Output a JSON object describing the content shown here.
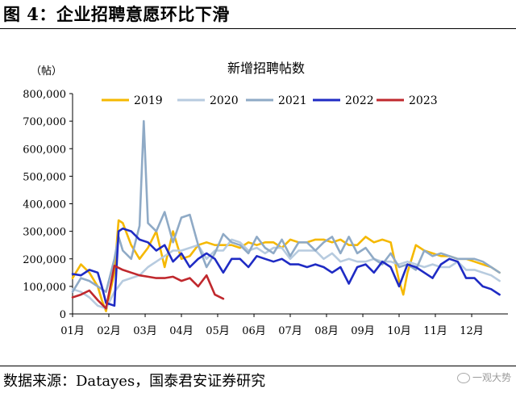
{
  "figure": {
    "title": "图 4：企业招聘意愿环比下滑",
    "source": "数据来源：Datayes，国泰君安证券研究",
    "watermark": "一观大势"
  },
  "chart_data": {
    "type": "line",
    "title": "新增招聘帖数",
    "unit_label": "（帖）",
    "ylim": [
      0,
      800000
    ],
    "ytick_values": [
      0,
      100000,
      200000,
      300000,
      400000,
      500000,
      600000,
      700000,
      800000
    ],
    "ytick_labels": [
      "0",
      "100,000",
      "200,000",
      "300,000",
      "400,000",
      "500,000",
      "600,000",
      "700,000",
      "800,000"
    ],
    "xlim": [
      0,
      52
    ],
    "xtick_positions": [
      0,
      4.33,
      8.67,
      13,
      17.33,
      21.67,
      26,
      30.33,
      34.67,
      39,
      43.33,
      47.67
    ],
    "xtick_labels": [
      "01月",
      "02月",
      "03月",
      "04月",
      "05月",
      "06月",
      "07月",
      "08月",
      "09月",
      "10月",
      "11月",
      "12月"
    ],
    "legend": "top",
    "series": [
      {
        "name": "2019",
        "color": "#F5B800",
        "x": [
          0,
          1,
          2,
          3,
          3.5,
          4,
          5,
          5.5,
          6,
          7,
          8,
          9,
          10,
          11,
          12,
          13,
          14,
          15,
          16,
          17,
          18,
          19,
          20,
          21,
          22,
          23,
          24,
          25,
          26,
          27,
          28,
          29,
          30,
          31,
          32,
          33,
          34,
          35,
          36,
          37,
          38,
          39,
          39.5,
          40,
          41,
          42,
          43,
          44,
          45,
          46,
          47,
          48,
          49,
          50,
          51
        ],
        "y": [
          130000,
          180000,
          150000,
          100000,
          50000,
          10000,
          150000,
          340000,
          330000,
          250000,
          200000,
          240000,
          300000,
          170000,
          300000,
          200000,
          210000,
          250000,
          260000,
          250000,
          250000,
          250000,
          240000,
          260000,
          250000,
          260000,
          260000,
          240000,
          270000,
          260000,
          260000,
          270000,
          270000,
          260000,
          270000,
          250000,
          250000,
          280000,
          260000,
          270000,
          260000,
          120000,
          70000,
          150000,
          250000,
          230000,
          220000,
          210000,
          210000,
          200000,
          200000,
          190000,
          180000,
          170000,
          150000
        ]
      },
      {
        "name": "2020",
        "color": "#B7CBDF",
        "x": [
          0,
          1,
          2,
          3,
          4,
          5,
          6,
          7,
          8,
          9,
          10,
          11,
          12,
          13,
          14,
          15,
          16,
          17,
          18,
          19,
          20,
          21,
          22,
          23,
          24,
          25,
          26,
          27,
          28,
          29,
          30,
          31,
          32,
          33,
          34,
          35,
          36,
          37,
          38,
          39,
          40,
          41,
          42,
          43,
          44,
          45,
          46,
          47,
          48,
          49,
          50,
          51
        ],
        "y": [
          90000,
          80000,
          60000,
          30000,
          20000,
          80000,
          120000,
          130000,
          140000,
          170000,
          190000,
          210000,
          230000,
          230000,
          240000,
          250000,
          200000,
          230000,
          230000,
          270000,
          260000,
          230000,
          240000,
          220000,
          240000,
          240000,
          200000,
          230000,
          230000,
          230000,
          200000,
          220000,
          190000,
          200000,
          190000,
          190000,
          200000,
          190000,
          190000,
          180000,
          190000,
          180000,
          170000,
          180000,
          170000,
          170000,
          190000,
          160000,
          160000,
          150000,
          140000,
          120000
        ]
      },
      {
        "name": "2021",
        "color": "#8FAAC6",
        "x": [
          0,
          1,
          2,
          3,
          3.5,
          4,
          5,
          5.5,
          6,
          7,
          8,
          8.5,
          9,
          10,
          11,
          12,
          13,
          14,
          15,
          16,
          17,
          18,
          19,
          20,
          21,
          22,
          23,
          24,
          25,
          26,
          27,
          28,
          29,
          30,
          31,
          32,
          33,
          34,
          35,
          36,
          37,
          38,
          39,
          40,
          41,
          42,
          43,
          44,
          45,
          46,
          47,
          48,
          49,
          50,
          51
        ],
        "y": [
          80000,
          130000,
          120000,
          100000,
          90000,
          80000,
          200000,
          280000,
          230000,
          200000,
          320000,
          700000,
          330000,
          300000,
          370000,
          260000,
          350000,
          360000,
          250000,
          170000,
          220000,
          290000,
          260000,
          250000,
          220000,
          280000,
          240000,
          220000,
          270000,
          210000,
          260000,
          260000,
          230000,
          260000,
          280000,
          220000,
          280000,
          220000,
          240000,
          200000,
          180000,
          220000,
          170000,
          180000,
          160000,
          230000,
          210000,
          220000,
          210000,
          200000,
          200000,
          200000,
          190000,
          170000,
          150000
        ]
      },
      {
        "name": "2022",
        "color": "#1F2BC4",
        "x": [
          0,
          1,
          2,
          3,
          3.5,
          4,
          5,
          5.5,
          6,
          7,
          8,
          9,
          10,
          11,
          12,
          13,
          14,
          15,
          16,
          17,
          18,
          19,
          20,
          21,
          22,
          23,
          24,
          25,
          26,
          27,
          28,
          29,
          30,
          31,
          32,
          33,
          34,
          35,
          36,
          37,
          38,
          39,
          40,
          41,
          42,
          43,
          44,
          45,
          46,
          47,
          48,
          49,
          50,
          51
        ],
        "y": [
          145000,
          140000,
          160000,
          150000,
          100000,
          40000,
          30000,
          300000,
          310000,
          300000,
          270000,
          260000,
          230000,
          250000,
          190000,
          220000,
          170000,
          200000,
          220000,
          200000,
          150000,
          200000,
          200000,
          170000,
          210000,
          200000,
          190000,
          200000,
          180000,
          180000,
          170000,
          180000,
          170000,
          150000,
          170000,
          110000,
          170000,
          180000,
          150000,
          190000,
          170000,
          100000,
          180000,
          170000,
          150000,
          130000,
          180000,
          200000,
          190000,
          130000,
          130000,
          100000,
          90000,
          70000
        ]
      },
      {
        "name": "2023",
        "color": "#C0282D",
        "x": [
          0,
          1,
          2,
          3,
          4,
          5,
          6,
          7,
          8,
          9,
          10,
          11,
          12,
          13,
          14,
          15,
          16,
          17,
          18
        ],
        "y": [
          60000,
          70000,
          85000,
          50000,
          20000,
          175000,
          160000,
          150000,
          140000,
          135000,
          130000,
          130000,
          135000,
          120000,
          130000,
          100000,
          140000,
          70000,
          55000
        ]
      }
    ]
  }
}
